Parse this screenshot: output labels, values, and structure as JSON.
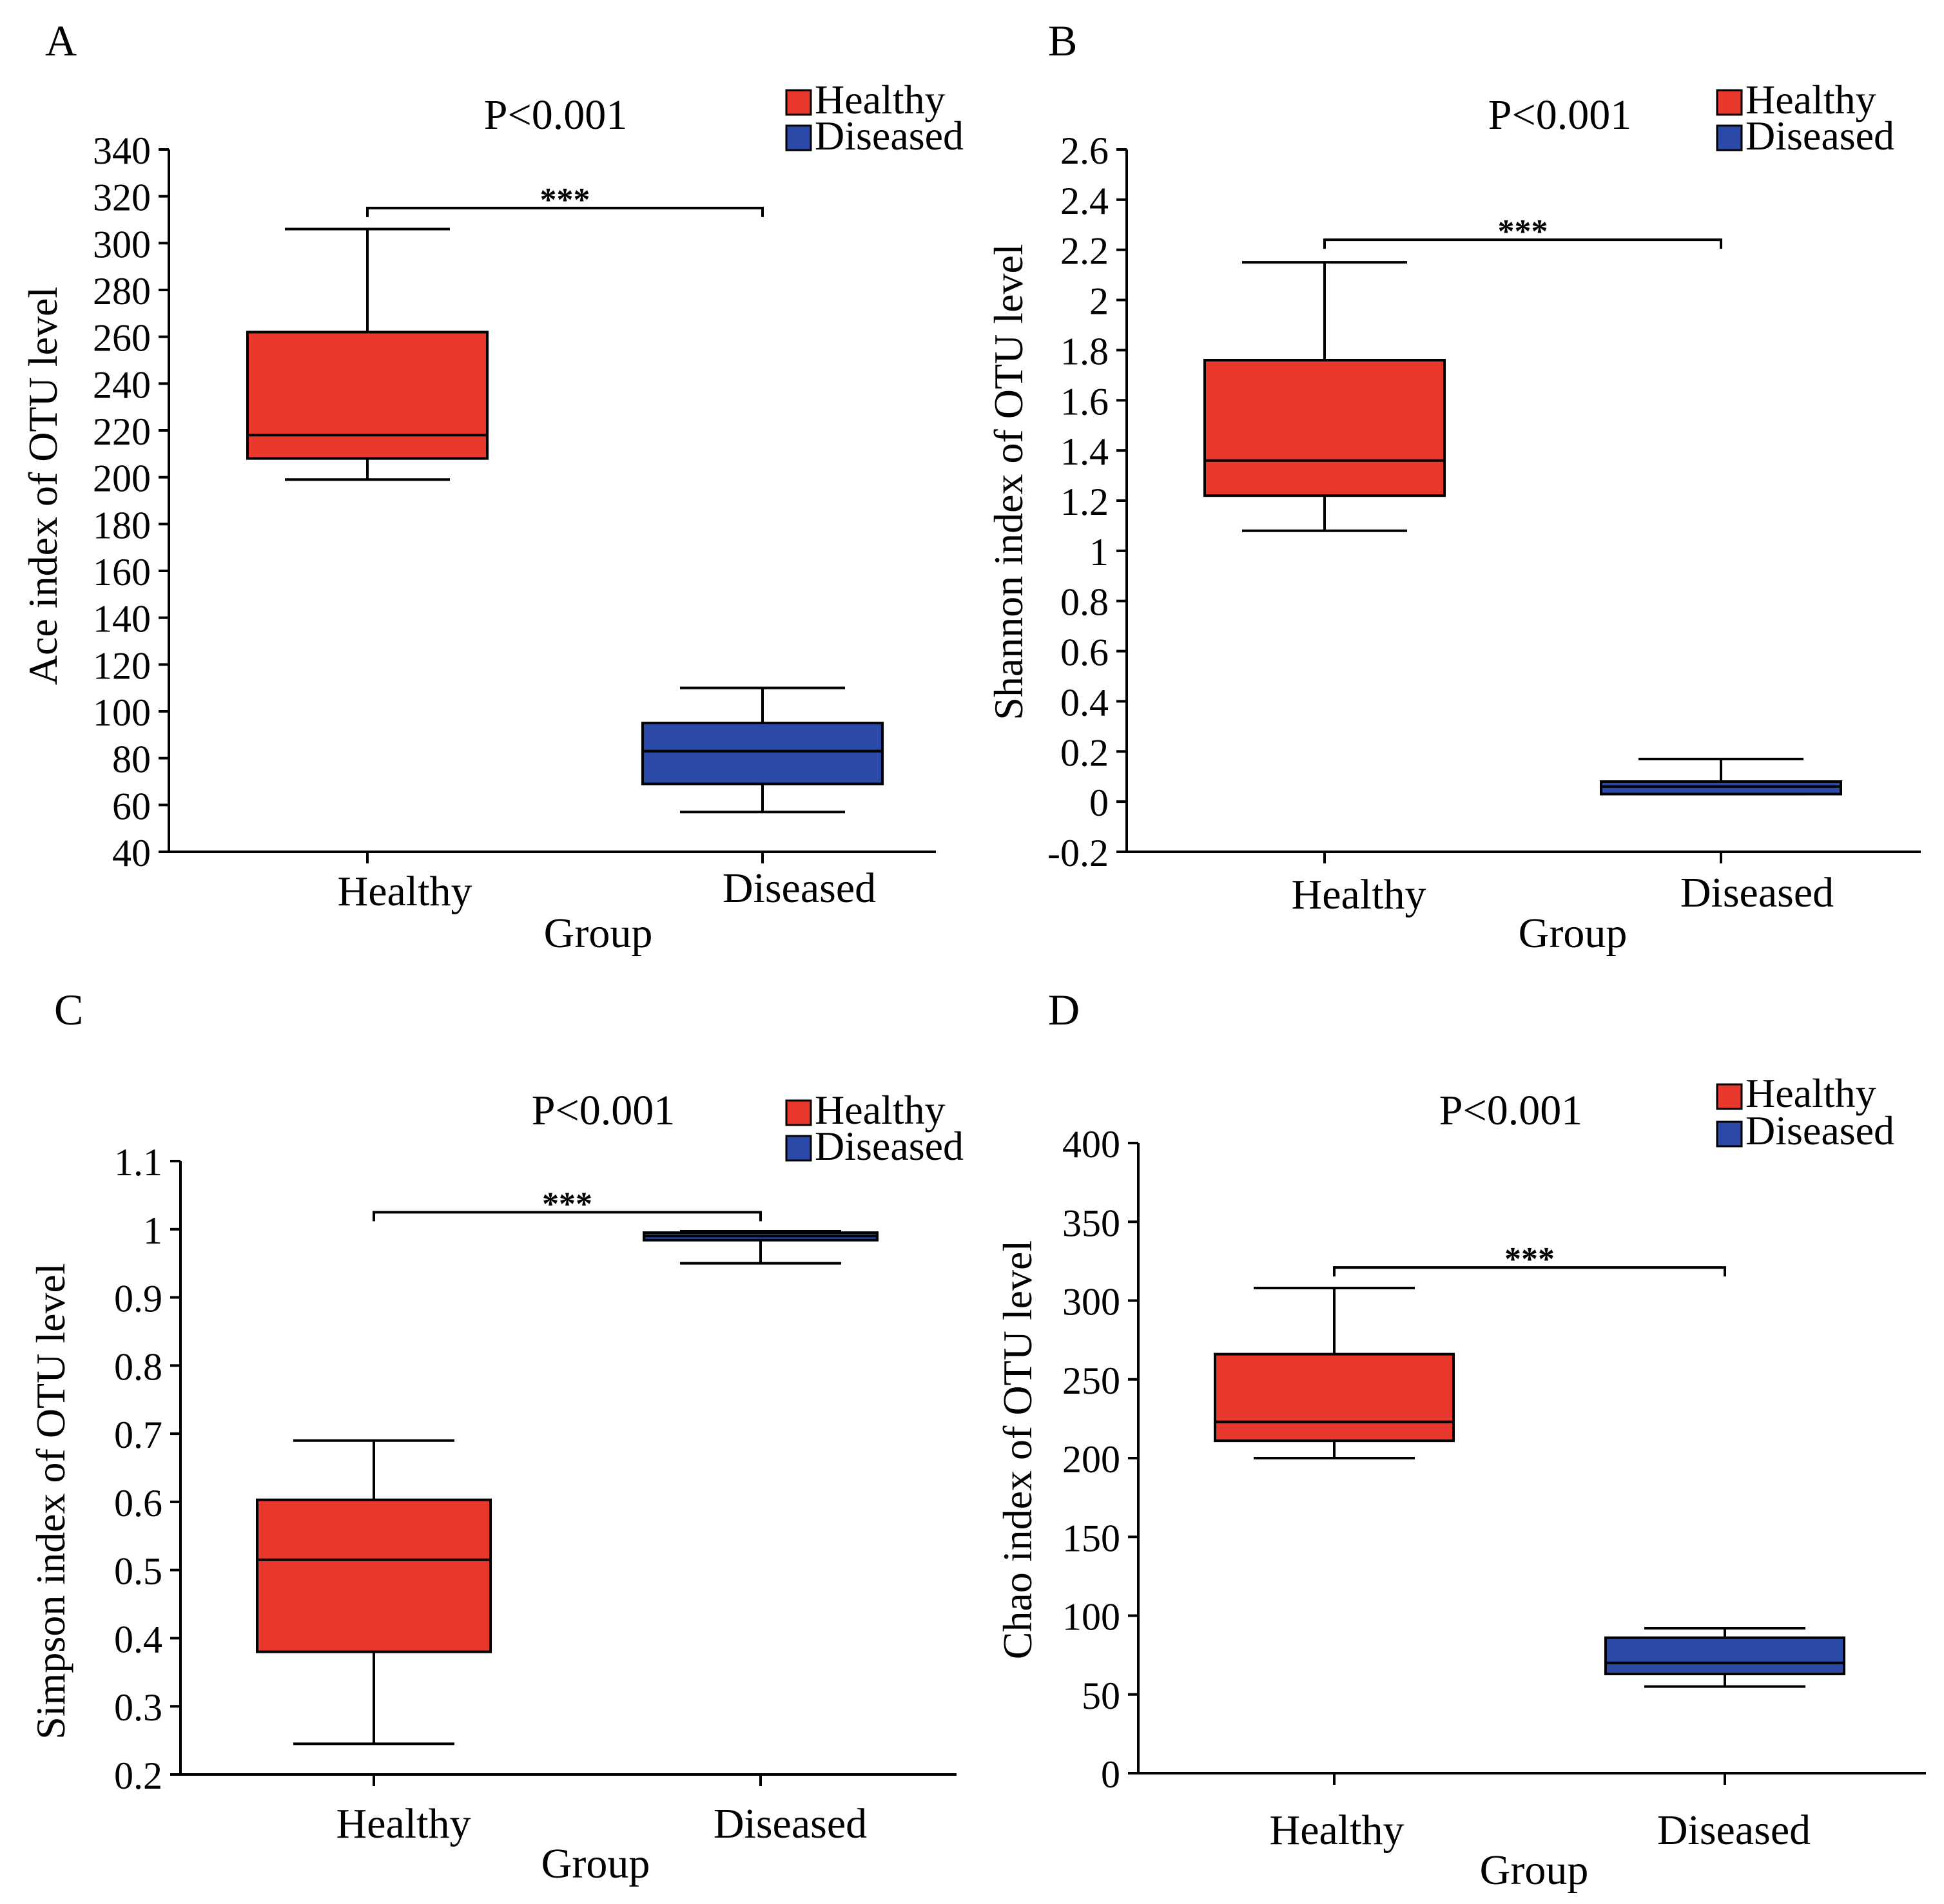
{
  "colors": {
    "healthy": "#e8372d",
    "diseased": "#2b4aa8",
    "axis": "#000000"
  },
  "chart_data": [
    {
      "type": "boxplot",
      "panel": "A",
      "pvalue": "P<0.001",
      "sig": "***",
      "legend": [
        "Healthy",
        "Diseased"
      ],
      "legend_position": "top-right",
      "xlabel": "Group",
      "ylabel": "Ace index of OTU level",
      "categories": [
        "Healthy",
        "Diseased"
      ],
      "ylim": [
        40,
        340
      ],
      "yticks": [
        40,
        60,
        80,
        100,
        120,
        140,
        160,
        180,
        200,
        220,
        240,
        260,
        280,
        300,
        320,
        340
      ],
      "ytick_labels": [
        "40",
        "60",
        "80",
        "100",
        "120",
        "140",
        "160",
        "180",
        "200",
        "220",
        "240",
        "260",
        "280",
        "300",
        "320",
        "340"
      ],
      "boxes": [
        {
          "name": "Healthy",
          "min": 199,
          "q1": 208,
          "median": 218,
          "q3": 262,
          "max": 306
        },
        {
          "name": "Diseased",
          "min": 57,
          "q1": 69,
          "median": 83,
          "q3": 95,
          "max": 110
        }
      ],
      "bracket_y": 315
    },
    {
      "type": "boxplot",
      "panel": "B",
      "pvalue": "P<0.001",
      "sig": "***",
      "legend": [
        "Healthy",
        "Diseased"
      ],
      "legend_position": "top-right",
      "xlabel": "Group",
      "ylabel": "Shannon index of OTU level",
      "categories": [
        "Healthy",
        "Diseased"
      ],
      "ylim": [
        -0.2,
        2.6
      ],
      "yticks": [
        -0.2,
        0,
        0.2,
        0.4,
        0.6,
        0.8,
        1,
        1.2,
        1.4,
        1.6,
        1.8,
        2,
        2.2,
        2.4,
        2.6
      ],
      "ytick_labels": [
        "-0.2",
        "0",
        "0.2",
        "0.4",
        "0.6",
        "0.8",
        "1",
        "1.2",
        "1.4",
        "1.6",
        "1.8",
        "2",
        "2.2",
        "2.4",
        "2.6"
      ],
      "boxes": [
        {
          "name": "Healthy",
          "min": 1.08,
          "q1": 1.22,
          "median": 1.36,
          "q3": 1.76,
          "max": 2.15
        },
        {
          "name": "Diseased",
          "min": 0.03,
          "q1": 0.03,
          "median": 0.06,
          "q3": 0.08,
          "max": 0.17
        }
      ],
      "bracket_y": 2.24
    },
    {
      "type": "boxplot",
      "panel": "C",
      "pvalue": "P<0.001",
      "sig": "***",
      "legend": [
        "Healthy",
        "Diseased"
      ],
      "legend_position": "top-right",
      "xlabel": "Group",
      "ylabel": "Simpson index of OTU level",
      "categories": [
        "Healthy",
        "Diseased"
      ],
      "ylim": [
        0.2,
        1.1
      ],
      "yticks": [
        0.2,
        0.3,
        0.4,
        0.5,
        0.6,
        0.7,
        0.8,
        0.9,
        1,
        1.1
      ],
      "ytick_labels": [
        "0.2",
        "0.3",
        "0.4",
        "0.5",
        "0.6",
        "0.7",
        "0.8",
        "0.9",
        "1",
        "1.1"
      ],
      "boxes": [
        {
          "name": "Healthy",
          "min": 0.245,
          "q1": 0.38,
          "median": 0.515,
          "q3": 0.603,
          "max": 0.69
        },
        {
          "name": "Diseased",
          "min": 0.95,
          "q1": 0.984,
          "median": 0.99,
          "q3": 0.995,
          "max": 0.997
        }
      ],
      "bracket_y": 1.025
    },
    {
      "type": "boxplot",
      "panel": "D",
      "pvalue": "P<0.001",
      "sig": "***",
      "legend": [
        "Healthy",
        "Diseased"
      ],
      "legend_position": "top-right",
      "xlabel": "Group",
      "ylabel": "Chao index of OTU level",
      "categories": [
        "Healthy",
        "Diseased"
      ],
      "ylim": [
        0,
        400
      ],
      "yticks": [
        0,
        50,
        100,
        150,
        200,
        250,
        300,
        350,
        400
      ],
      "ytick_labels": [
        "0",
        "50",
        "100",
        "150",
        "200",
        "250",
        "300",
        "350",
        "400"
      ],
      "boxes": [
        {
          "name": "Healthy",
          "min": 200,
          "q1": 211,
          "median": 223,
          "q3": 266,
          "max": 308
        },
        {
          "name": "Diseased",
          "min": 55,
          "q1": 63,
          "median": 70,
          "q3": 86,
          "max": 92
        }
      ],
      "bracket_y": 321
    }
  ]
}
